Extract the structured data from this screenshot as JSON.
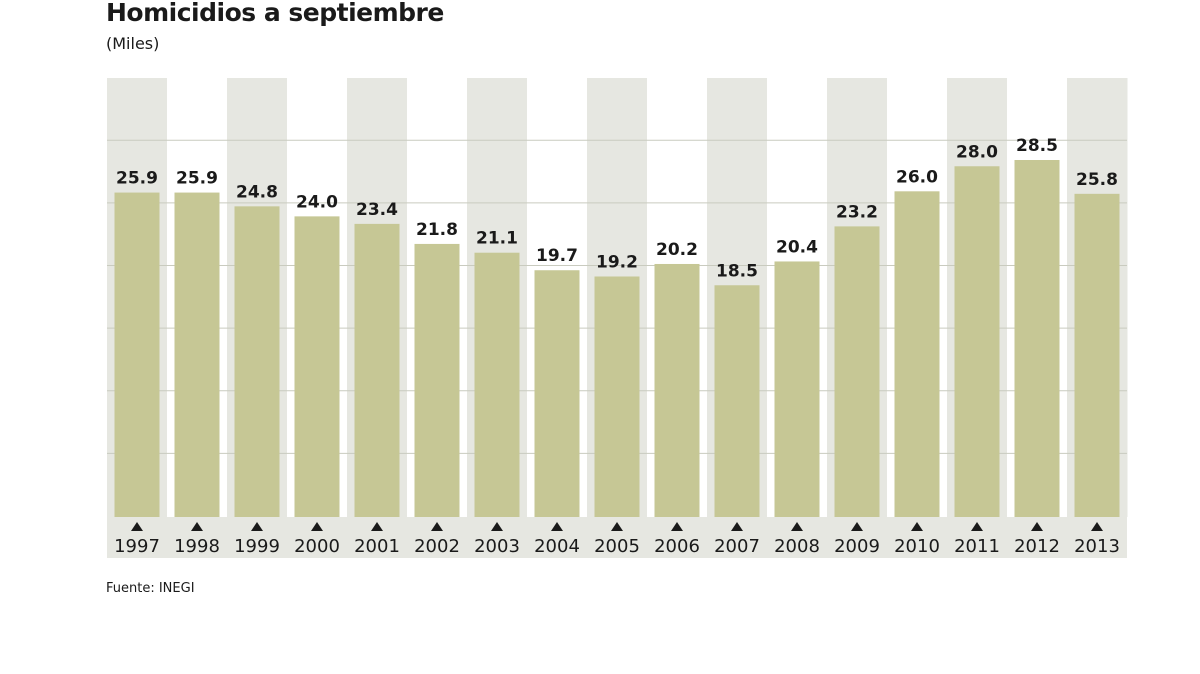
{
  "chart_data": {
    "type": "bar",
    "title": "Homicidios a septiembre",
    "subtitle": "(Miles)",
    "source": "Fuente: INEGI",
    "categories": [
      "1997",
      "1998",
      "1999",
      "2000",
      "2001",
      "2002",
      "2003",
      "2004",
      "2005",
      "2006",
      "2007",
      "2008",
      "2009",
      "2010",
      "2011",
      "2012",
      "2013"
    ],
    "values": [
      25.9,
      25.9,
      24.8,
      24.0,
      23.4,
      21.8,
      21.1,
      19.7,
      19.2,
      20.2,
      18.5,
      20.4,
      23.2,
      26.0,
      28.0,
      28.5,
      25.8
    ],
    "value_labels": [
      "25.9",
      "25.9",
      "24.8",
      "24.0",
      "23.4",
      "21.8",
      "21.1",
      "19.7",
      "19.2",
      "20.2",
      "18.5",
      "20.4",
      "23.2",
      "26.0",
      "28.0",
      "28.5",
      "25.8"
    ],
    "ylim": [
      0,
      35
    ],
    "grid": true,
    "legend": "none",
    "colors": {
      "bar": "#c6c795",
      "band_shaded": "#e6e7e1",
      "band_plain": "#ffffff",
      "grid": "#c9cbbf",
      "axis_strip": "#e6e7e1",
      "text": "#1a1a1a"
    }
  }
}
